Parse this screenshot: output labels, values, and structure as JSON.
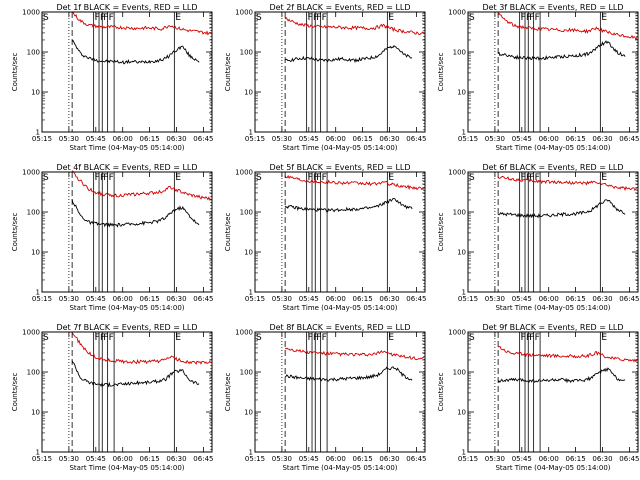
{
  "chart_data": [
    {
      "type": "line",
      "title": "Det 1f BLACK = Events, RED = LLD",
      "xlabel": "Start Time (04-May-05 05:14:00)",
      "ylabel": "Counts/sec",
      "yscale": "log",
      "ylim": [
        1,
        1000
      ],
      "xlim": [
        5.25,
        6.83
      ],
      "xticks": [
        "05:15",
        "05:30",
        "05:45",
        "06:00",
        "06:15",
        "06:30",
        "06:45"
      ],
      "yticks": [
        "1",
        "10",
        "100",
        "1000"
      ],
      "marker_labels": [
        "S",
        "F",
        "F",
        "F",
        "F",
        "E"
      ],
      "markers": {
        "S": 5.25,
        "dotted": 5.5,
        "dashed": 5.53,
        "F": [
          5.73,
          5.78,
          5.81,
          5.86,
          5.92
        ],
        "E": 6.48,
        "end": 6.82
      },
      "series": [
        {
          "color": "#000000",
          "start": 5.53,
          "end": 6.71,
          "values": [
            200,
            90,
            70,
            62,
            58,
            58,
            55,
            58,
            55,
            58,
            60,
            68,
            100,
            140,
            75,
            60
          ]
        },
        {
          "color": "#d20000",
          "start": 5.53,
          "end": 6.82,
          "values": [
            1000,
            600,
            470,
            440,
            420,
            420,
            410,
            400,
            390,
            400,
            390,
            380,
            470,
            390,
            350,
            330,
            310,
            290
          ]
        }
      ]
    },
    {
      "type": "line",
      "title": "Det 2f BLACK = Events, RED = LLD",
      "xlabel": "Start Time (04-May-05 05:14:00)",
      "ylabel": "Counts/sec",
      "yscale": "log",
      "ylim": [
        1,
        1000
      ],
      "xlim": [
        5.25,
        6.83
      ],
      "xticks": [
        "05:15",
        "05:30",
        "05:45",
        "06:00",
        "06:15",
        "06:30",
        "06:45"
      ],
      "yticks": [
        "1",
        "10",
        "100",
        "1000"
      ],
      "marker_labels": [
        "S",
        "F",
        "F",
        "F",
        "F",
        "E"
      ],
      "markers": {
        "S": 5.25,
        "dotted": 5.5,
        "dashed": 5.53,
        "F": [
          5.73,
          5.78,
          5.81,
          5.86,
          5.92
        ],
        "E": 6.48,
        "end": 6.82
      },
      "series": [
        {
          "color": "#000000",
          "start": 5.53,
          "end": 6.71,
          "values": [
            60,
            65,
            70,
            68,
            62,
            62,
            65,
            68,
            62,
            65,
            70,
            80,
            120,
            150,
            85,
            70
          ]
        },
        {
          "color": "#d20000",
          "start": 5.53,
          "end": 6.82,
          "values": [
            700,
            560,
            480,
            450,
            430,
            420,
            420,
            410,
            400,
            400,
            390,
            400,
            460,
            380,
            340,
            320,
            300,
            290
          ]
        }
      ]
    },
    {
      "type": "line",
      "title": "Det 3f BLACK = Events, RED = LLD",
      "xlabel": "Start Time (04-May-05 05:14:00)",
      "ylabel": "Counts/sec",
      "yscale": "log",
      "ylim": [
        1,
        1000
      ],
      "xlim": [
        5.25,
        6.83
      ],
      "xticks": [
        "05:15",
        "05:30",
        "05:45",
        "06:00",
        "06:15",
        "06:30",
        "06:45"
      ],
      "yticks": [
        "1",
        "10",
        "100",
        "1000"
      ],
      "marker_labels": [
        "S",
        "F",
        "F",
        "F",
        "F",
        "E"
      ],
      "markers": {
        "S": 5.25,
        "dotted": 5.5,
        "dashed": 5.53,
        "F": [
          5.73,
          5.78,
          5.81,
          5.86,
          5.92
        ],
        "E": 6.48,
        "end": 6.82
      },
      "series": [
        {
          "color": "#000000",
          "start": 5.53,
          "end": 6.71,
          "values": [
            90,
            85,
            75,
            72,
            70,
            70,
            72,
            75,
            78,
            80,
            85,
            95,
            150,
            180,
            100,
            80
          ]
        },
        {
          "color": "#d20000",
          "start": 5.53,
          "end": 6.82,
          "values": [
            900,
            600,
            450,
            420,
            390,
            380,
            370,
            360,
            350,
            350,
            340,
            330,
            400,
            330,
            280,
            260,
            240,
            220
          ]
        }
      ]
    },
    {
      "type": "line",
      "title": "Det 4f BLACK = Events, RED = LLD",
      "xlabel": "Start Time (04-May-05 05:14:00)",
      "ylabel": "Counts/sec",
      "yscale": "log",
      "ylim": [
        1,
        1000
      ],
      "xlim": [
        5.25,
        6.83
      ],
      "xticks": [
        "05:15",
        "05:30",
        "05:45",
        "06:00",
        "06:15",
        "06:30",
        "06:45"
      ],
      "yticks": [
        "1",
        "10",
        "100",
        "1000"
      ],
      "marker_labels": [
        "S",
        "F",
        "F",
        "F",
        "F",
        "E"
      ],
      "markers": {
        "S": 5.25,
        "dotted": 5.5,
        "dashed": 5.53,
        "F": [
          5.73,
          5.78,
          5.81,
          5.86,
          5.92
        ],
        "E": 6.48,
        "end": 6.82
      },
      "series": [
        {
          "color": "#000000",
          "start": 5.53,
          "end": 6.71,
          "values": [
            200,
            80,
            55,
            50,
            48,
            47,
            48,
            50,
            52,
            54,
            58,
            70,
            110,
            130,
            75,
            45
          ]
        },
        {
          "color": "#d20000",
          "start": 5.53,
          "end": 6.82,
          "values": [
            1000,
            600,
            380,
            300,
            270,
            260,
            260,
            270,
            280,
            290,
            300,
            330,
            420,
            340,
            280,
            250,
            230,
            210
          ]
        }
      ]
    },
    {
      "type": "line",
      "title": "Det 5f BLACK = Events, RED = LLD",
      "xlabel": "Start Time (04-May-05 05:14:00)",
      "ylabel": "Counts/sec",
      "yscale": "log",
      "ylim": [
        1,
        1000
      ],
      "xlim": [
        5.25,
        6.83
      ],
      "xticks": [
        "05:15",
        "05:30",
        "05:45",
        "06:00",
        "06:15",
        "06:30",
        "06:45"
      ],
      "yticks": [
        "1",
        "10",
        "100",
        "1000"
      ],
      "marker_labels": [
        "S",
        "F",
        "F",
        "F",
        "F",
        "E"
      ],
      "markers": {
        "S": 5.25,
        "dotted": 5.5,
        "dashed": 5.53,
        "F": [
          5.73,
          5.78,
          5.81,
          5.86,
          5.92
        ],
        "E": 6.48,
        "end": 6.82
      },
      "series": [
        {
          "color": "#000000",
          "start": 5.53,
          "end": 6.71,
          "values": [
            140,
            130,
            120,
            115,
            112,
            110,
            112,
            115,
            118,
            120,
            125,
            140,
            180,
            210,
            140,
            120
          ]
        },
        {
          "color": "#d20000",
          "start": 5.53,
          "end": 6.82,
          "values": [
            800,
            720,
            640,
            600,
            580,
            560,
            550,
            540,
            530,
            520,
            510,
            500,
            560,
            490,
            450,
            420,
            400,
            390
          ]
        }
      ]
    },
    {
      "type": "line",
      "title": "Det 6f BLACK = Events, RED = LLD",
      "xlabel": "Start Time (04-May-05 05:14:00)",
      "ylabel": "Counts/sec",
      "yscale": "log",
      "ylim": [
        1,
        1000
      ],
      "xlim": [
        5.25,
        6.83
      ],
      "xticks": [
        "05:15",
        "05:30",
        "05:45",
        "06:00",
        "06:15",
        "06:30",
        "06:45"
      ],
      "yticks": [
        "1",
        "10",
        "100",
        "1000"
      ],
      "marker_labels": [
        "S",
        "F",
        "F",
        "F",
        "F",
        "E"
      ],
      "markers": {
        "S": 5.25,
        "dotted": 5.5,
        "dashed": 5.53,
        "F": [
          5.73,
          5.78,
          5.81,
          5.86,
          5.92
        ],
        "E": 6.48,
        "end": 6.82
      },
      "series": [
        {
          "color": "#000000",
          "start": 5.53,
          "end": 6.71,
          "values": [
            90,
            88,
            85,
            82,
            80,
            80,
            82,
            85,
            88,
            90,
            95,
            110,
            160,
            200,
            120,
            95
          ]
        },
        {
          "color": "#d20000",
          "start": 5.53,
          "end": 6.82,
          "values": [
            750,
            700,
            650,
            620,
            600,
            580,
            570,
            560,
            550,
            540,
            530,
            520,
            560,
            480,
            430,
            400,
            380,
            360
          ]
        }
      ]
    },
    {
      "type": "line",
      "title": "Det 7f BLACK = Events, RED = LLD",
      "xlabel": "Start Time (04-May-05 05:14:00)",
      "ylabel": "Counts/sec",
      "yscale": "log",
      "ylim": [
        1,
        1000
      ],
      "xlim": [
        5.25,
        6.83
      ],
      "xticks": [
        "05:15",
        "05:30",
        "05:45",
        "06:00",
        "06:15",
        "06:30",
        "06:45"
      ],
      "yticks": [
        "1",
        "10",
        "100",
        "1000"
      ],
      "marker_labels": [
        "S",
        "F",
        "F",
        "F",
        "F",
        "E"
      ],
      "markers": {
        "S": 5.25,
        "dotted": 5.5,
        "dashed": 5.53,
        "F": [
          5.73,
          5.78,
          5.81,
          5.86,
          5.92
        ],
        "E": 6.48,
        "end": 6.82
      },
      "series": [
        {
          "color": "#000000",
          "start": 5.53,
          "end": 6.71,
          "values": [
            200,
            70,
            55,
            50,
            48,
            48,
            50,
            52,
            54,
            55,
            58,
            65,
            100,
            110,
            60,
            50
          ]
        },
        {
          "color": "#d20000",
          "start": 5.53,
          "end": 6.82,
          "values": [
            1000,
            500,
            300,
            230,
            200,
            190,
            185,
            180,
            180,
            180,
            185,
            190,
            240,
            200,
            180,
            170,
            170,
            175
          ]
        }
      ]
    },
    {
      "type": "line",
      "title": "Det 8f BLACK = Events, RED = LLD",
      "xlabel": "Start Time (04-May-05 05:14:00)",
      "ylabel": "Counts/sec",
      "yscale": "log",
      "ylim": [
        1,
        1000
      ],
      "xlim": [
        5.25,
        6.83
      ],
      "xticks": [
        "05:15",
        "05:30",
        "05:45",
        "06:00",
        "06:15",
        "06:30",
        "06:45"
      ],
      "yticks": [
        "1",
        "10",
        "100",
        "1000"
      ],
      "marker_labels": [
        "S",
        "F",
        "F",
        "F",
        "F",
        "E"
      ],
      "markers": {
        "S": 5.25,
        "dotted": 5.5,
        "dashed": 5.53,
        "F": [
          5.73,
          5.78,
          5.81,
          5.86,
          5.92
        ],
        "E": 6.48,
        "end": 6.82
      },
      "series": [
        {
          "color": "#000000",
          "start": 5.53,
          "end": 6.71,
          "values": [
            80,
            75,
            70,
            68,
            66,
            65,
            66,
            68,
            70,
            72,
            75,
            85,
            120,
            130,
            80,
            65
          ]
        },
        {
          "color": "#d20000",
          "start": 5.53,
          "end": 6.82,
          "values": [
            400,
            360,
            330,
            310,
            300,
            290,
            285,
            280,
            275,
            270,
            270,
            275,
            340,
            280,
            250,
            230,
            220,
            210
          ]
        }
      ]
    },
    {
      "type": "line",
      "title": "Det 9f BLACK = Events, RED = LLD",
      "xlabel": "Start Time (04-May-05 05:14:00)",
      "ylabel": "Counts/sec",
      "yscale": "log",
      "ylim": [
        1,
        1000
      ],
      "xlim": [
        5.25,
        6.83
      ],
      "xticks": [
        "05:15",
        "05:30",
        "05:45",
        "06:00",
        "06:15",
        "06:30",
        "06:45"
      ],
      "yticks": [
        "1",
        "10",
        "100",
        "1000"
      ],
      "marker_labels": [
        "S",
        "F",
        "F",
        "F",
        "F",
        "E"
      ],
      "markers": {
        "S": 5.25,
        "dotted": 5.5,
        "dashed": 5.53,
        "F": [
          5.73,
          5.78,
          5.81,
          5.86,
          5.92
        ],
        "E": 6.48,
        "end": 6.82
      },
      "series": [
        {
          "color": "#000000",
          "start": 5.53,
          "end": 6.71,
          "values": [
            60,
            62,
            64,
            62,
            60,
            60,
            62,
            64,
            62,
            60,
            62,
            70,
            100,
            120,
            70,
            60
          ]
        },
        {
          "color": "#d20000",
          "start": 5.53,
          "end": 6.82,
          "values": [
            450,
            330,
            290,
            280,
            270,
            265,
            260,
            255,
            250,
            250,
            245,
            250,
            300,
            250,
            220,
            210,
            200,
            195
          ]
        }
      ]
    }
  ]
}
